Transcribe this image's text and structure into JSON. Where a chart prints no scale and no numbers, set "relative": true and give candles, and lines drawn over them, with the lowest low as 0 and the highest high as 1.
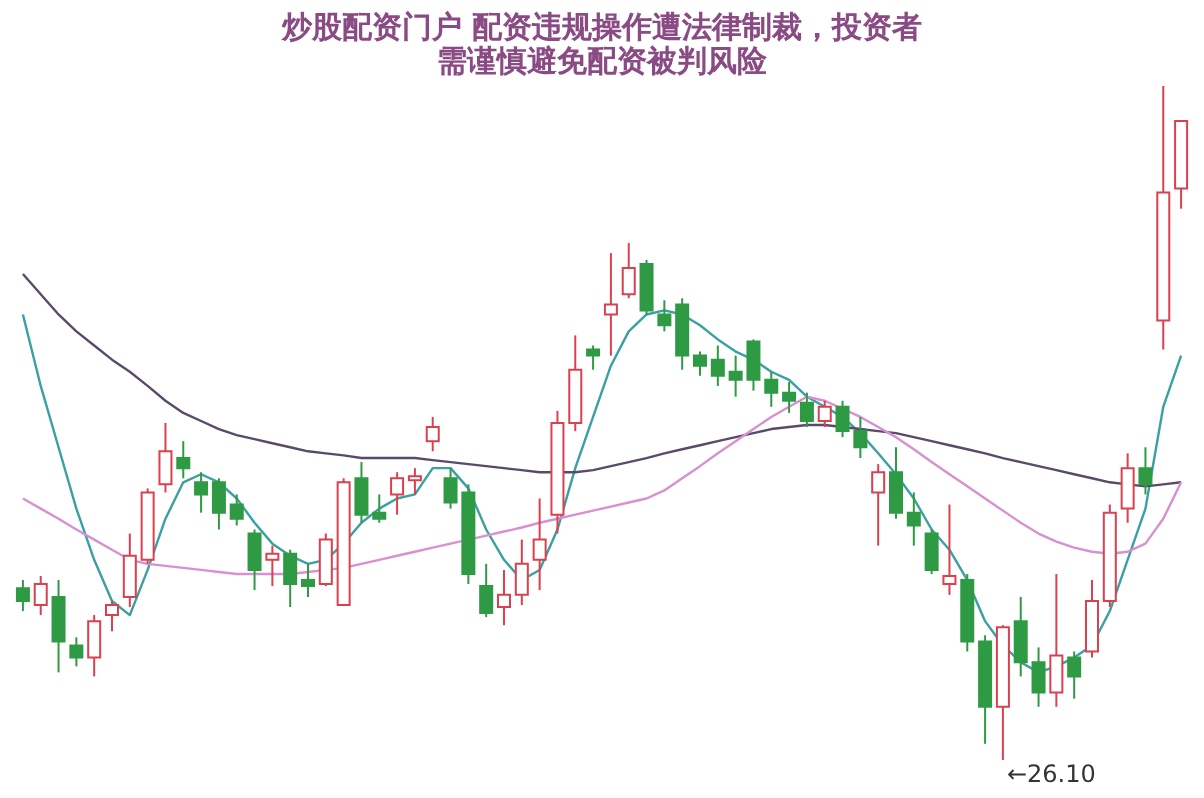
{
  "chart_data": {
    "type": "candlestick",
    "title": "炒股配资门户 配资违规操作遭法律制裁，投资者需谨慎避免配资被判风险",
    "relative": true,
    "categories": [
      null,
      null,
      null,
      null,
      null,
      null,
      null,
      null,
      null,
      null,
      null,
      null,
      null,
      null,
      null,
      null,
      null,
      null,
      null,
      null,
      null,
      null,
      null,
      null,
      null,
      null,
      null,
      null,
      null,
      null,
      null,
      null,
      null,
      null,
      null,
      null,
      null,
      null,
      null,
      null,
      null,
      null,
      null,
      null,
      null,
      null,
      null,
      null,
      null,
      null,
      null,
      null,
      null,
      null,
      null,
      null,
      null,
      null,
      null,
      null,
      null,
      null,
      null,
      null,
      null,
      null
    ],
    "ohlc": [
      [
        0.255,
        0.267,
        0.221,
        0.236
      ],
      [
        0.23,
        0.273,
        0.215,
        0.261
      ],
      [
        0.242,
        0.267,
        0.13,
        0.176
      ],
      [
        0.17,
        0.182,
        0.139,
        0.152
      ],
      [
        0.152,
        0.215,
        0.124,
        0.206
      ],
      [
        0.215,
        0.236,
        0.191,
        0.23
      ],
      [
        0.242,
        0.336,
        0.227,
        0.303
      ],
      [
        0.297,
        0.403,
        0.291,
        0.397
      ],
      [
        0.409,
        0.5,
        0.397,
        0.458
      ],
      [
        0.448,
        0.473,
        0.418,
        0.433
      ],
      [
        0.412,
        0.427,
        0.367,
        0.394
      ],
      [
        0.412,
        0.418,
        0.342,
        0.367
      ],
      [
        0.379,
        0.394,
        0.348,
        0.358
      ],
      [
        0.336,
        0.342,
        0.252,
        0.282
      ],
      [
        0.297,
        0.318,
        0.258,
        0.306
      ],
      [
        0.306,
        0.312,
        0.227,
        0.261
      ],
      [
        0.267,
        0.291,
        0.242,
        0.258
      ],
      [
        0.261,
        0.336,
        0.258,
        0.327
      ],
      [
        0.23,
        0.418,
        0.23,
        0.412
      ],
      [
        0.418,
        0.442,
        0.352,
        0.364
      ],
      [
        0.367,
        0.394,
        0.352,
        0.358
      ],
      [
        0.394,
        0.427,
        0.364,
        0.418
      ],
      [
        0.415,
        0.433,
        0.394,
        0.421
      ],
      [
        0.473,
        0.509,
        0.458,
        0.494
      ],
      [
        0.418,
        0.433,
        0.373,
        0.382
      ],
      [
        0.397,
        0.409,
        0.261,
        0.276
      ],
      [
        0.258,
        0.291,
        0.212,
        0.218
      ],
      [
        0.227,
        0.282,
        0.2,
        0.245
      ],
      [
        0.245,
        0.327,
        0.23,
        0.291
      ],
      [
        0.297,
        0.388,
        0.252,
        0.327
      ],
      [
        0.364,
        0.518,
        0.336,
        0.5
      ],
      [
        0.5,
        0.63,
        0.488,
        0.579
      ],
      [
        0.609,
        0.615,
        0.579,
        0.6
      ],
      [
        0.661,
        0.752,
        0.6,
        0.676
      ],
      [
        0.691,
        0.767,
        0.685,
        0.73
      ],
      [
        0.736,
        0.742,
        0.661,
        0.667
      ],
      [
        0.661,
        0.682,
        0.636,
        0.645
      ],
      [
        0.676,
        0.685,
        0.579,
        0.6
      ],
      [
        0.6,
        0.606,
        0.57,
        0.585
      ],
      [
        0.594,
        0.615,
        0.555,
        0.57
      ],
      [
        0.576,
        0.6,
        0.539,
        0.564
      ],
      [
        0.621,
        0.624,
        0.548,
        0.564
      ],
      [
        0.564,
        0.576,
        0.524,
        0.545
      ],
      [
        0.545,
        0.561,
        0.515,
        0.533
      ],
      [
        0.53,
        0.545,
        0.494,
        0.503
      ],
      [
        0.503,
        0.533,
        0.494,
        0.524
      ],
      [
        0.524,
        0.533,
        0.479,
        0.488
      ],
      [
        0.488,
        0.509,
        0.448,
        0.464
      ],
      [
        0.397,
        0.439,
        0.318,
        0.427
      ],
      [
        0.427,
        0.464,
        0.358,
        0.367
      ],
      [
        0.367,
        0.397,
        0.318,
        0.348
      ],
      [
        0.336,
        0.342,
        0.276,
        0.282
      ],
      [
        0.261,
        0.379,
        0.245,
        0.273
      ],
      [
        0.267,
        0.276,
        0.161,
        0.176
      ],
      [
        0.176,
        0.185,
        0.024,
        0.079
      ],
      [
        0.079,
        0.2,
        0.0,
        0.197
      ],
      [
        0.206,
        0.242,
        0.124,
        0.145
      ],
      [
        0.145,
        0.167,
        0.079,
        0.1
      ],
      [
        0.1,
        0.276,
        0.079,
        0.155
      ],
      [
        0.152,
        0.161,
        0.091,
        0.124
      ],
      [
        0.161,
        0.267,
        0.152,
        0.236
      ],
      [
        0.236,
        0.379,
        0.227,
        0.367
      ],
      [
        0.373,
        0.455,
        0.352,
        0.433
      ],
      [
        0.433,
        0.464,
        0.394,
        0.409
      ],
      [
        0.652,
        1.0,
        0.609,
        0.842
      ],
      [
        0.848,
        0.948,
        0.818,
        0.948
      ]
    ],
    "colors": [
      "#2e9a44",
      "#d9414f",
      "#2e9a44",
      "#2e9a44",
      "#d9414f",
      "#d9414f",
      "#d9414f",
      "#d9414f",
      "#d9414f",
      "#2e9a44",
      "#2e9a44",
      "#2e9a44",
      "#2e9a44",
      "#2e9a44",
      "#d9414f",
      "#2e9a44",
      "#2e9a44",
      "#d9414f",
      "#d9414f",
      "#2e9a44",
      "#2e9a44",
      "#d9414f",
      "#d9414f",
      "#d9414f",
      "#2e9a44",
      "#2e9a44",
      "#2e9a44",
      "#d9414f",
      "#d9414f",
      "#d9414f",
      "#d9414f",
      "#d9414f",
      "#2e9a44",
      "#d9414f",
      "#d9414f",
      "#2e9a44",
      "#2e9a44",
      "#2e9a44",
      "#2e9a44",
      "#2e9a44",
      "#2e9a44",
      "#2e9a44",
      "#2e9a44",
      "#2e9a44",
      "#2e9a44",
      "#d9414f",
      "#2e9a44",
      "#2e9a44",
      "#d9414f",
      "#2e9a44",
      "#2e9a44",
      "#2e9a44",
      "#d9414f",
      "#2e9a44",
      "#2e9a44",
      "#d9414f",
      "#2e9a44",
      "#2e9a44",
      "#d9414f",
      "#2e9a44",
      "#d9414f",
      "#d9414f",
      "#d9414f",
      "#2e9a44",
      "#d9414f",
      "#d9414f"
    ],
    "series": [
      {
        "type": "line",
        "color": "#3aa0a0",
        "values": [
          0.661,
          0.555,
          0.464,
          0.373,
          0.297,
          0.236,
          0.215,
          0.282,
          0.358,
          0.412,
          0.424,
          0.412,
          0.388,
          0.352,
          0.321,
          0.303,
          0.291,
          0.297,
          0.321,
          0.352,
          0.373,
          0.388,
          0.394,
          0.433,
          0.433,
          0.403,
          0.342,
          0.297,
          0.267,
          0.282,
          0.342,
          0.433,
          0.509,
          0.585,
          0.636,
          0.661,
          0.667,
          0.661,
          0.645,
          0.624,
          0.606,
          0.594,
          0.576,
          0.564,
          0.539,
          0.524,
          0.509,
          0.485,
          0.455,
          0.424,
          0.388,
          0.342,
          0.312,
          0.267,
          0.206,
          0.17,
          0.145,
          0.13,
          0.139,
          0.152,
          0.17,
          0.221,
          0.297,
          0.373,
          0.524,
          0.6
        ]
      },
      {
        "type": "line",
        "color": "#5a4a6a",
        "values": [
          0.721,
          0.691,
          0.661,
          0.636,
          0.615,
          0.594,
          0.576,
          0.555,
          0.533,
          0.515,
          0.503,
          0.491,
          0.482,
          0.476,
          0.47,
          0.464,
          0.458,
          0.455,
          0.452,
          0.448,
          0.448,
          0.448,
          0.448,
          0.445,
          0.442,
          0.439,
          0.436,
          0.433,
          0.43,
          0.427,
          0.427,
          0.427,
          0.43,
          0.436,
          0.442,
          0.448,
          0.455,
          0.461,
          0.467,
          0.473,
          0.479,
          0.485,
          0.491,
          0.494,
          0.497,
          0.497,
          0.494,
          0.491,
          0.488,
          0.485,
          0.479,
          0.473,
          0.467,
          0.461,
          0.455,
          0.448,
          0.442,
          0.436,
          0.43,
          0.424,
          0.418,
          0.412,
          0.409,
          0.406,
          0.409,
          0.412
        ]
      },
      {
        "type": "line",
        "color": "#d890d0",
        "values": [
          0.388,
          0.373,
          0.358,
          0.342,
          0.327,
          0.312,
          0.297,
          0.291,
          0.288,
          0.285,
          0.282,
          0.279,
          0.276,
          0.276,
          0.276,
          0.276,
          0.279,
          0.282,
          0.285,
          0.291,
          0.297,
          0.303,
          0.309,
          0.315,
          0.321,
          0.327,
          0.333,
          0.339,
          0.345,
          0.352,
          0.358,
          0.364,
          0.37,
          0.376,
          0.382,
          0.388,
          0.4,
          0.418,
          0.436,
          0.455,
          0.473,
          0.491,
          0.509,
          0.524,
          0.539,
          0.533,
          0.521,
          0.509,
          0.494,
          0.479,
          0.461,
          0.442,
          0.424,
          0.406,
          0.388,
          0.37,
          0.352,
          0.336,
          0.324,
          0.315,
          0.309,
          0.306,
          0.309,
          0.321,
          0.358,
          0.412
        ]
      }
    ],
    "annotations": [
      "←26.10"
    ]
  }
}
